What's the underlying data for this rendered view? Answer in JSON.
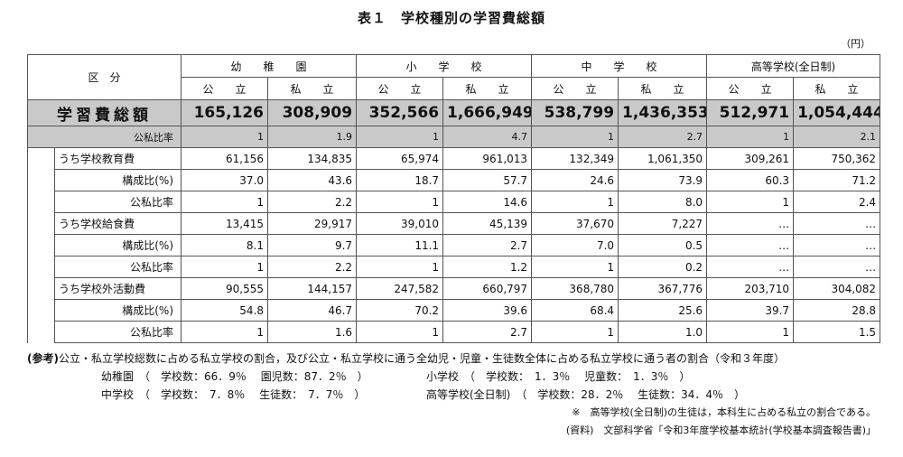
{
  "title": "表１　学校種別の学習費総額",
  "unit": "（円）",
  "header": {
    "division": "区　分",
    "groups": [
      "幼　　稚　　園",
      "小　　学　　校",
      "中　　学　　校",
      "高等学校(全日制)"
    ],
    "sub": [
      "公　　立",
      "私　　立",
      "公　　立",
      "私　　立",
      "公　　立",
      "私　　立",
      "公　　立",
      "私　　立"
    ]
  },
  "total": {
    "label": "学習費総額",
    "values": [
      "165,126",
      "308,909",
      "352,566",
      "1,666,949",
      "538,799",
      "1,436,353",
      "512,971",
      "1,054,444"
    ],
    "ratio_label": "公私比率",
    "ratio": [
      "1",
      "1.9",
      "1",
      "4.7",
      "1",
      "2.7",
      "1",
      "2.1"
    ]
  },
  "sections": [
    {
      "label": "うち学校教育費",
      "values": [
        "61,156",
        "134,835",
        "65,974",
        "961,013",
        "132,349",
        "1,061,350",
        "309,261",
        "750,362"
      ],
      "comp_label": "構成比(%)",
      "comp": [
        "37.0",
        "43.6",
        "18.7",
        "57.7",
        "24.6",
        "73.9",
        "60.3",
        "71.2"
      ],
      "ratio_label": "公私比率",
      "ratio": [
        "1",
        "2.2",
        "1",
        "14.6",
        "1",
        "8.0",
        "1",
        "2.4"
      ]
    },
    {
      "label": "うち学校給食費",
      "values": [
        "13,415",
        "29,917",
        "39,010",
        "45,139",
        "37,670",
        "7,227",
        "…",
        "…"
      ],
      "comp_label": "構成比(%)",
      "comp": [
        "8.1",
        "9.7",
        "11.1",
        "2.7",
        "7.0",
        "0.5",
        "…",
        "…"
      ],
      "ratio_label": "公私比率",
      "ratio": [
        "1",
        "2.2",
        "1",
        "1.2",
        "1",
        "0.2",
        "…",
        "…"
      ]
    },
    {
      "label": "うち学校外活動費",
      "values": [
        "90,555",
        "144,157",
        "247,582",
        "660,797",
        "368,780",
        "367,776",
        "203,710",
        "304,082"
      ],
      "comp_label": "構成比(%)",
      "comp": [
        "54.8",
        "46.7",
        "70.2",
        "39.6",
        "68.4",
        "25.6",
        "39.7",
        "28.8"
      ],
      "ratio_label": "公私比率",
      "ratio": [
        "1",
        "1.6",
        "1",
        "2.7",
        "1",
        "1.0",
        "1",
        "1.5"
      ]
    }
  ],
  "notes": {
    "ref_head": "(参考)",
    "ref_text": "公立・私立学校総数に占める私立学校の割合，及び公立・私立学校に通う全幼児・児童・生徒数全体に占める私立学校に通う者の割合（令和３年度）",
    "line2a": "幼稚園　（　学校数：66．9％　 園児数：87．2％　）",
    "line2b": "小学校　（　学校数：　1．3％　 児童数：　1．3％　）",
    "line3a": "中学校　（　学校数：　7．8％　 生徒数：　7．7％　）",
    "line3b": "高等学校(全日制)　（　学校数：28．2％　 生徒数：34．4％　）",
    "note": "※　高等学校(全日制)の生徒は，本科生に占める私立の割合である。",
    "source": "(資料)　文部科学省「令和3年度学校基本統計(学校基本調査報告書)」"
  }
}
